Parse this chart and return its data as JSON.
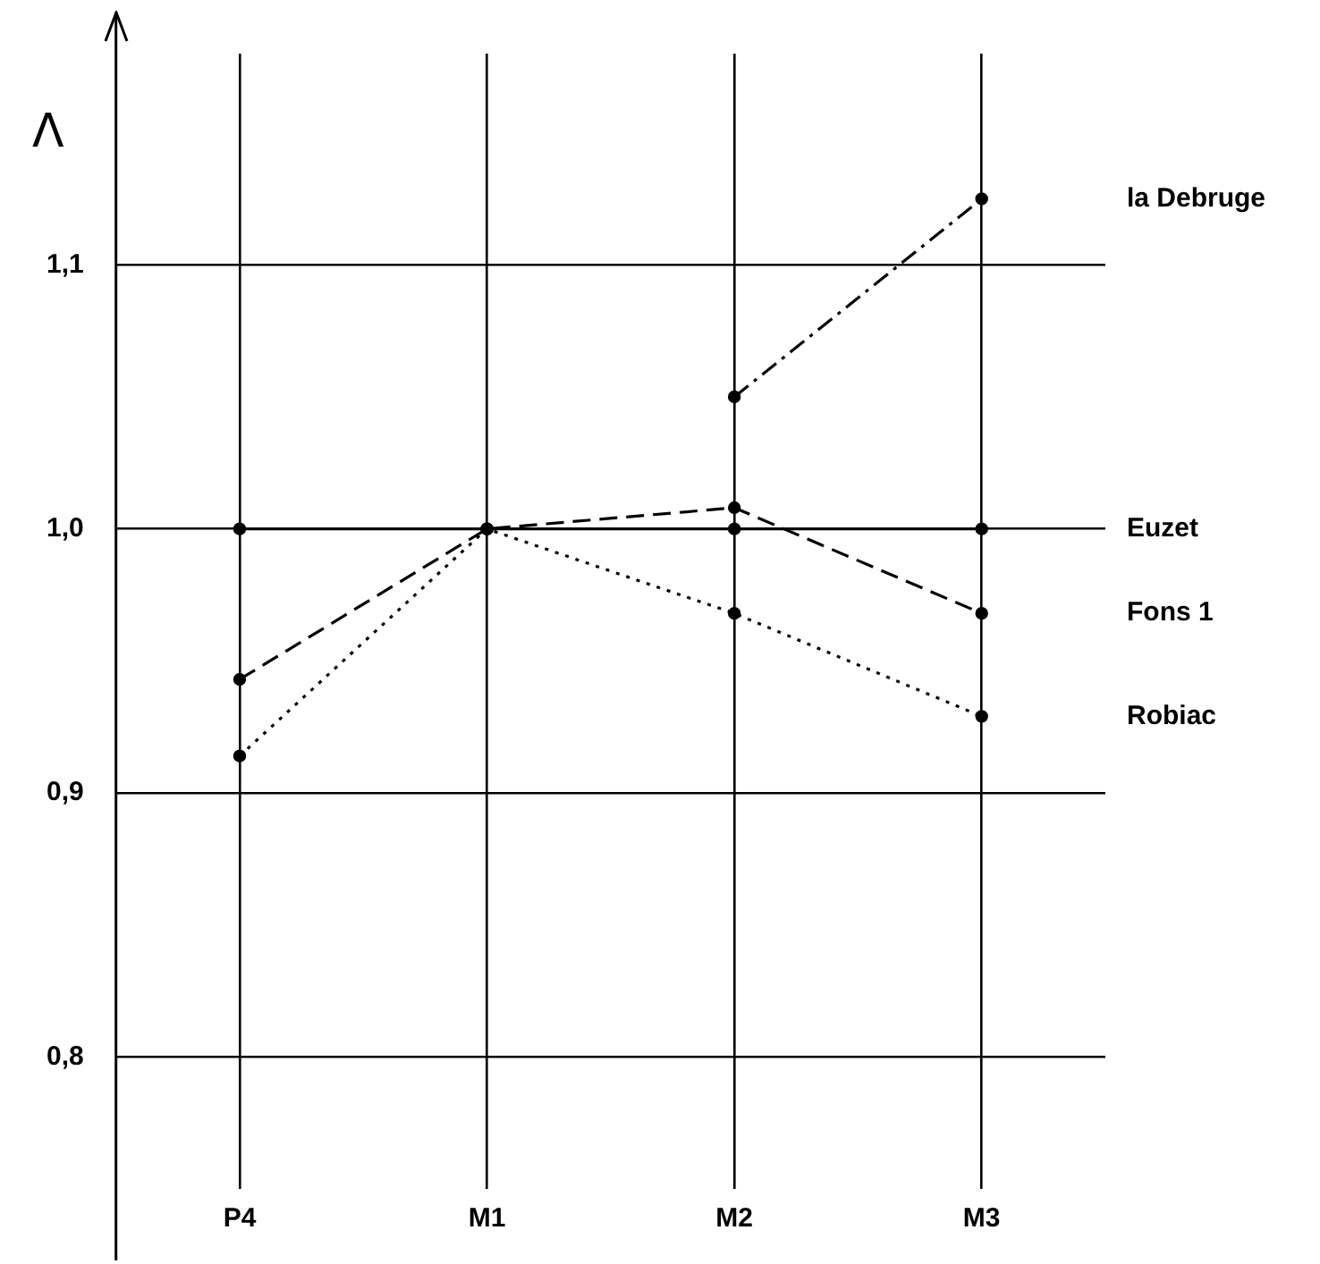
{
  "chart_data": {
    "type": "line",
    "ylabel": "Λ",
    "categories": [
      "P4",
      "M1",
      "M2",
      "M3"
    ],
    "series": [
      {
        "name": "la Debruge",
        "color": "#000000",
        "line_style": "dashdot",
        "values": [
          null,
          null,
          1.05,
          1.125
        ]
      },
      {
        "name": "Euzet",
        "color": "#000000",
        "line_style": "solid",
        "values": [
          1.0,
          1.0,
          1.0,
          1.0
        ]
      },
      {
        "name": "Fons 1",
        "color": "#000000",
        "line_style": "dashed",
        "values": [
          0.943,
          1.0,
          1.008,
          0.968
        ]
      },
      {
        "name": "Robiac",
        "color": "#000000",
        "line_style": "dotted",
        "values": [
          0.914,
          1.0,
          0.968,
          0.929
        ]
      }
    ],
    "ylim": [
      0.75,
      1.18
    ],
    "yticks": [
      {
        "value": 0.8,
        "label": "0,8"
      },
      {
        "value": 0.9,
        "label": "0,9"
      },
      {
        "value": 1.0,
        "label": "1,0"
      },
      {
        "value": 1.1,
        "label": "1,1"
      }
    ],
    "grid": true,
    "legend": false,
    "marker": "circle"
  }
}
